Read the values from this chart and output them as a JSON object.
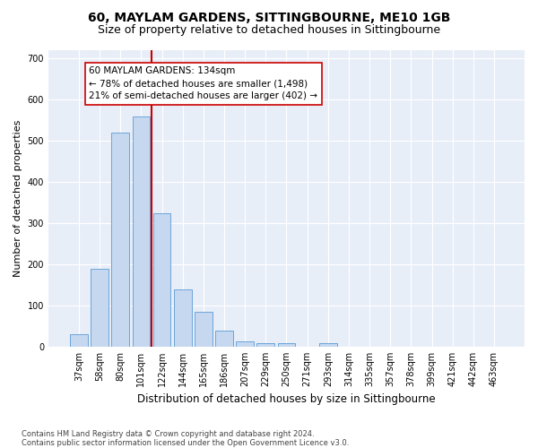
{
  "title1": "60, MAYLAM GARDENS, SITTINGBOURNE, ME10 1GB",
  "title2": "Size of property relative to detached houses in Sittingbourne",
  "xlabel": "Distribution of detached houses by size in Sittingbourne",
  "ylabel": "Number of detached properties",
  "categories": [
    "37sqm",
    "58sqm",
    "80sqm",
    "101sqm",
    "122sqm",
    "144sqm",
    "165sqm",
    "186sqm",
    "207sqm",
    "229sqm",
    "250sqm",
    "271sqm",
    "293sqm",
    "314sqm",
    "335sqm",
    "357sqm",
    "378sqm",
    "399sqm",
    "421sqm",
    "442sqm",
    "463sqm"
  ],
  "values": [
    30,
    190,
    520,
    560,
    325,
    140,
    85,
    40,
    12,
    8,
    8,
    0,
    8,
    0,
    0,
    0,
    0,
    0,
    0,
    0,
    0
  ],
  "bar_color": "#c5d8f0",
  "bar_edge_color": "#5b9bd5",
  "vline_index": 4,
  "vline_color": "#cc0000",
  "annotation_line1": "60 MAYLAM GARDENS: 134sqm",
  "annotation_line2": "← 78% of detached houses are smaller (1,498)",
  "annotation_line3": "21% of semi-detached houses are larger (402) →",
  "annotation_box_facecolor": "#ffffff",
  "annotation_box_edgecolor": "#cc0000",
  "ylim": [
    0,
    720
  ],
  "yticks": [
    0,
    100,
    200,
    300,
    400,
    500,
    600,
    700
  ],
  "footnote": "Contains HM Land Registry data © Crown copyright and database right 2024.\nContains public sector information licensed under the Open Government Licence v3.0.",
  "title1_fontsize": 10,
  "title2_fontsize": 9,
  "xlabel_fontsize": 8.5,
  "ylabel_fontsize": 8,
  "tick_fontsize": 7,
  "annotation_fontsize": 7.5,
  "footnote_fontsize": 6,
  "plot_bg_color": "#e8eef8",
  "fig_bg_color": "#ffffff",
  "grid_color": "#ffffff"
}
